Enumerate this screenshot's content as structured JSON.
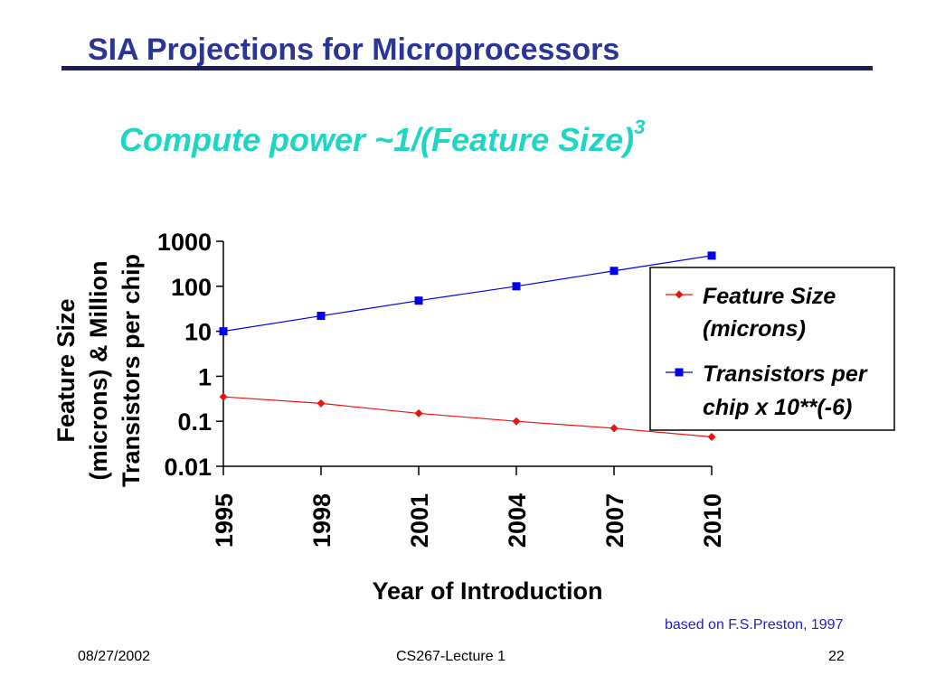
{
  "slide": {
    "title": "SIA Projections for Microprocessors",
    "subtitle_main": "Compute power ~1/(Feature Size)",
    "subtitle_sup": "3",
    "credit": "based on F.S.Preston, 1997",
    "footer": {
      "date": "08/27/2002",
      "course": "CS267-Lecture 1",
      "page": "22"
    }
  },
  "colors": {
    "title": "#2a3596",
    "subtitle": "#1fd6c4",
    "credit": "#2222cc",
    "feature_series": "#ee1111",
    "transistor_series": "#0000ee"
  },
  "chart_data": {
    "type": "line",
    "x": [
      1995,
      1998,
      2001,
      2004,
      2007,
      2010
    ],
    "x_tick_labels": [
      "1995",
      "1998",
      "2001",
      "2004",
      "2007",
      "2010"
    ],
    "xlabel": "Year of Introduction",
    "ylabel_lines": [
      "Feature Size",
      "(microns) & Million",
      "Transistors per chip"
    ],
    "yscale": "log",
    "ylim": [
      0.01,
      1000
    ],
    "y_tick_labels": [
      "1000",
      "100",
      "10",
      "1",
      "0.1",
      "0.01"
    ],
    "y_tick_values": [
      1000,
      100,
      10,
      1,
      0.1,
      0.01
    ],
    "grid": false,
    "legend_position": "right",
    "series": [
      {
        "name_lines": [
          "Feature Size",
          "(microns)"
        ],
        "marker": "diamond",
        "values": [
          0.35,
          0.25,
          0.15,
          0.1,
          0.07,
          0.045
        ]
      },
      {
        "name_lines": [
          "Transistors per",
          "chip x 10**(-6)"
        ],
        "marker": "square",
        "values": [
          10,
          22,
          48,
          100,
          220,
          480
        ]
      }
    ]
  }
}
